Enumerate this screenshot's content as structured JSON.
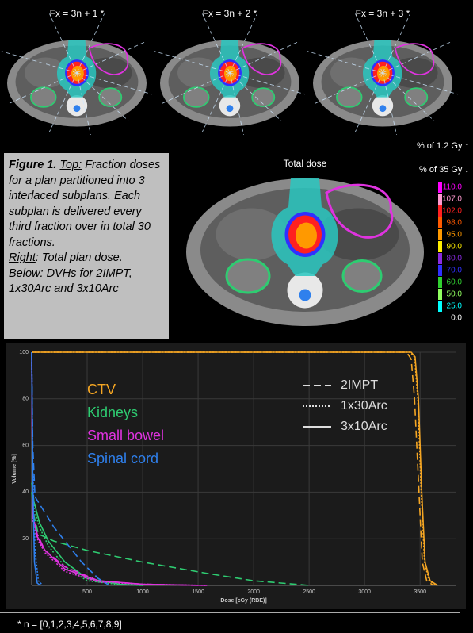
{
  "panels": [
    {
      "title": "Fx = 3n + 1 *"
    },
    {
      "title": "Fx = 3n + 2 *"
    },
    {
      "title": "Fx = 3n + 3 *"
    }
  ],
  "total_dose_title": "Total dose",
  "colorbar": {
    "title_fraction": "% of 1.2 Gy ↑",
    "title_total": "% of 35 Gy ↓",
    "labels": [
      {
        "value": 110,
        "label": "110.0"
      },
      {
        "value": 107,
        "label": "107.0"
      },
      {
        "value": 102,
        "label": "102.0"
      },
      {
        "value": 98,
        "label": "98.0"
      },
      {
        "value": 95,
        "label": "95.0"
      },
      {
        "value": 90,
        "label": "90.0"
      },
      {
        "value": 80,
        "label": "80.0"
      },
      {
        "value": 70,
        "label": "70.0"
      },
      {
        "value": 60,
        "label": "60.0"
      },
      {
        "value": 50,
        "label": "50.0"
      },
      {
        "value": 25,
        "label": "25.0"
      },
      {
        "value": 0,
        "label": "0.0"
      }
    ],
    "colors": [
      "#ff00ff",
      "#ff9ad0",
      "#ff2020",
      "#ff5a00",
      "#ff9900",
      "#ffee00",
      "#8a2be2",
      "#3030ff",
      "#30d030",
      "#90ff60",
      "#00ffff",
      "#000000"
    ]
  },
  "caption": {
    "figure_label": "Figure 1.",
    "top_label": "Top:",
    "top_text": "Fraction doses for a plan partitioned into 3 interlaced subplans. Each subplan is delivered every third fraction over in total 30 fractions.",
    "right_label": "Right",
    "right_text": ": Total plan dose.",
    "below_label": "Below:",
    "below_text": "DVHs for 2IMPT, 1x30Arc and 3x10Arc"
  },
  "footnote": "* n = [0,1,2,3,4,5,6,7,8,9]",
  "chart_data": {
    "type": "line",
    "x_label": "Dose [cGy (RBE)]",
    "y_label": "Volume [%]",
    "xlim": [
      0,
      3820
    ],
    "ylim": [
      0,
      100
    ],
    "xticks": [
      500,
      1000,
      1500,
      2000,
      2500,
      3000,
      3500
    ],
    "yticks": [
      20,
      40,
      60,
      80,
      100
    ],
    "grid": true,
    "line_styles": [
      {
        "name": "2IMPT",
        "dash": "dashed"
      },
      {
        "name": "1x30Arc",
        "dash": "dotted"
      },
      {
        "name": "3x10Arc",
        "dash": "solid"
      }
    ],
    "structures": [
      {
        "name": "CTV",
        "color": "#f5a623",
        "curves": [
          {
            "style": "dashed",
            "x": [
              0,
              3380,
              3420,
              3450,
              3490,
              3520,
              3560,
              3620
            ],
            "values": [
              100,
              100,
              97,
              80,
              40,
              10,
              2,
              0
            ]
          },
          {
            "style": "dotted",
            "x": [
              0,
              3410,
              3450,
              3480,
              3510,
              3540,
              3580,
              3650
            ],
            "values": [
              100,
              100,
              98,
              80,
              40,
              10,
              2,
              0
            ]
          },
          {
            "style": "solid",
            "x": [
              0,
              3420,
              3455,
              3485,
              3515,
              3545,
              3590,
              3660
            ],
            "values": [
              100,
              100,
              98,
              80,
              40,
              10,
              2,
              0
            ]
          }
        ]
      },
      {
        "name": "Kidneys",
        "color": "#2ecc71",
        "curves": [
          {
            "style": "dashed",
            "x": [
              0,
              20,
              60,
              200,
              500,
              1000,
              1600,
              2000,
              2500
            ],
            "values": [
              40,
              30,
              22,
              19,
              15,
              10,
              5,
              2,
              0
            ]
          },
          {
            "style": "dotted",
            "x": [
              0,
              20,
              70,
              150,
              300,
              500,
              800,
              1000
            ],
            "values": [
              40,
              33,
              25,
              17,
              8,
              2,
              0.3,
              0
            ]
          },
          {
            "style": "solid",
            "x": [
              0,
              20,
              70,
              150,
              300,
              500,
              800,
              1000
            ],
            "values": [
              44,
              36,
              27,
              19,
              10,
              3,
              0.5,
              0
            ]
          }
        ]
      },
      {
        "name": "Small bowel",
        "color": "#e033e0",
        "curves": [
          {
            "style": "dashed",
            "x": [
              0,
              10,
              50,
              120,
              300,
              600,
              1000,
              1500
            ],
            "values": [
              100,
              30,
              22,
              15,
              8,
              2,
              0.5,
              0
            ]
          },
          {
            "style": "dotted",
            "x": [
              0,
              10,
              50,
              120,
              300,
              600,
              1000,
              1580
            ],
            "values": [
              100,
              28,
              20,
              14,
              6,
              1.5,
              0.5,
              0
            ]
          },
          {
            "style": "solid",
            "x": [
              0,
              10,
              50,
              120,
              300,
              600,
              1000,
              1580
            ],
            "values": [
              100,
              30,
              21,
              15,
              7,
              2,
              0.5,
              0
            ]
          }
        ]
      },
      {
        "name": "Spinal cord",
        "color": "#2f80ed",
        "curves": [
          {
            "style": "dashed",
            "x": [
              0,
              10,
              30,
              200,
              450,
              600,
              700
            ],
            "values": [
              100,
              60,
              38,
              25,
              10,
              3,
              0
            ]
          },
          {
            "style": "dotted",
            "x": [
              0,
              10,
              30,
              60,
              100
            ],
            "values": [
              100,
              50,
              15,
              2,
              0
            ]
          },
          {
            "style": "solid",
            "x": [
              0,
              10,
              25,
              50,
              80
            ],
            "values": [
              100,
              45,
              10,
              1,
              0
            ]
          }
        ]
      }
    ]
  }
}
